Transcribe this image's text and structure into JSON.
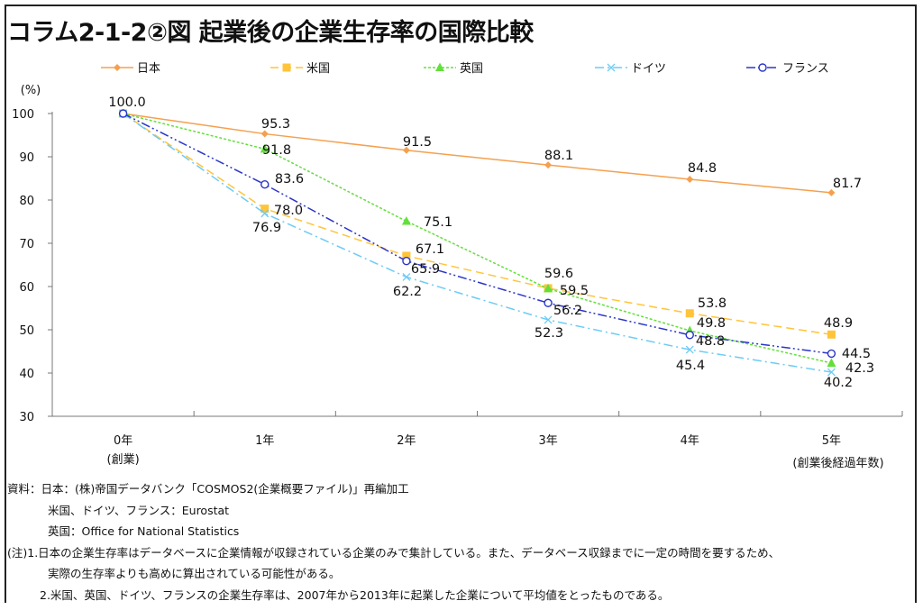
{
  "title": "コラム2-1-2②図 起業後の企業生存率の国際比較",
  "chart_data": {
    "type": "line",
    "title": "コラム2-1-2②図 起業後の企業生存率の国際比較",
    "ylabel": "(%)",
    "xlabel": "(創業後経過年数)",
    "categories": [
      "0年",
      "1年",
      "2年",
      "3年",
      "4年",
      "5年"
    ],
    "category_sublabels": [
      "(創業)",
      "",
      "",
      "",
      "",
      ""
    ],
    "ylim": [
      30,
      100
    ],
    "yticks": [
      30,
      40,
      50,
      60,
      70,
      80,
      90,
      100
    ],
    "grid": false,
    "legend_position": "top",
    "series": [
      {
        "name": "日本",
        "values": [
          100.0,
          95.3,
          91.5,
          88.1,
          84.8,
          81.7
        ],
        "color": "#F5A04E",
        "marker": "diamond",
        "dash": "solid"
      },
      {
        "name": "米国",
        "values": [
          100.0,
          78.0,
          67.1,
          59.6,
          53.8,
          48.9
        ],
        "color": "#FFC43A",
        "marker": "square",
        "dash": "dashed"
      },
      {
        "name": "英国",
        "values": [
          100.0,
          91.8,
          75.1,
          59.5,
          49.8,
          42.3
        ],
        "color": "#62E03A",
        "marker": "triangle",
        "dash": "dotted"
      },
      {
        "name": "ドイツ",
        "values": [
          100.0,
          76.9,
          62.2,
          52.3,
          45.4,
          40.2
        ],
        "color": "#6CCBF5",
        "marker": "x",
        "dash": "dash-dot"
      },
      {
        "name": "フランス",
        "values": [
          100.0,
          83.6,
          65.9,
          56.2,
          48.8,
          44.5
        ],
        "color": "#2B35C8",
        "marker": "open-circle",
        "dash": "dash-dot-dot"
      }
    ],
    "first_point_label": "100.0"
  },
  "notes": {
    "source1": "資料：日本：(株)帝国データバンク「COSMOS2(企業概要ファイル)」再編加工",
    "source2": "米国、ドイツ、フランス：Eurostat",
    "source3": "英国：Office for National Statistics",
    "note1a": "(注)1.日本の企業生存率はデータベースに企業情報が収録されている企業のみで集計している。また、データベース収録までに一定の時間を要するため、",
    "note1b": "実際の生存率よりも高めに算出されている可能性がある。",
    "note2": "2.米国、英国、ドイツ、フランスの企業生存率は、2007年から2013年に起業した企業について平均値をとったものである。"
  }
}
